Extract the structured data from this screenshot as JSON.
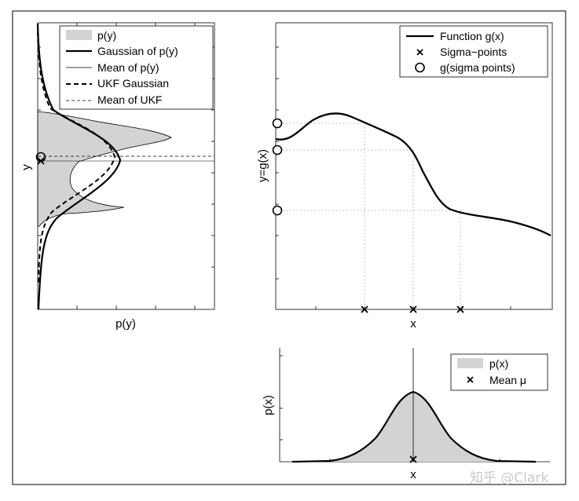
{
  "left_panel": {
    "xlabel": "p(y)",
    "ylabel": "y",
    "legend": [
      {
        "label": "p(y)",
        "style": "patch"
      },
      {
        "label": "Gaussian of p(y)",
        "style": "thick-solid"
      },
      {
        "label": "Mean of p(y)",
        "style": "thin-solid"
      },
      {
        "label": "UKF Gaussian",
        "style": "thick-dashed"
      },
      {
        "label": "Mean of UKF",
        "style": "thin-dashed"
      }
    ]
  },
  "top_right_panel": {
    "xlabel": "x",
    "ylabel": "y=g(x)",
    "legend": [
      {
        "label": "Function g(x)",
        "style": "thick-solid"
      },
      {
        "label": "Sigma−points",
        "style": "cross"
      },
      {
        "label": "g(sigma points)",
        "style": "circle"
      }
    ]
  },
  "bottom_right_panel": {
    "xlabel": "x",
    "ylabel": "p(x)",
    "legend": [
      {
        "label": "p(x)",
        "style": "patch"
      },
      {
        "label": "Mean μ",
        "style": "cross"
      }
    ]
  },
  "watermark": "知乎 @Clark",
  "colors": {
    "fill": "#d3d3d3",
    "line": "#000000",
    "grid": "#999999",
    "watermark": "#c9c9c9"
  }
}
